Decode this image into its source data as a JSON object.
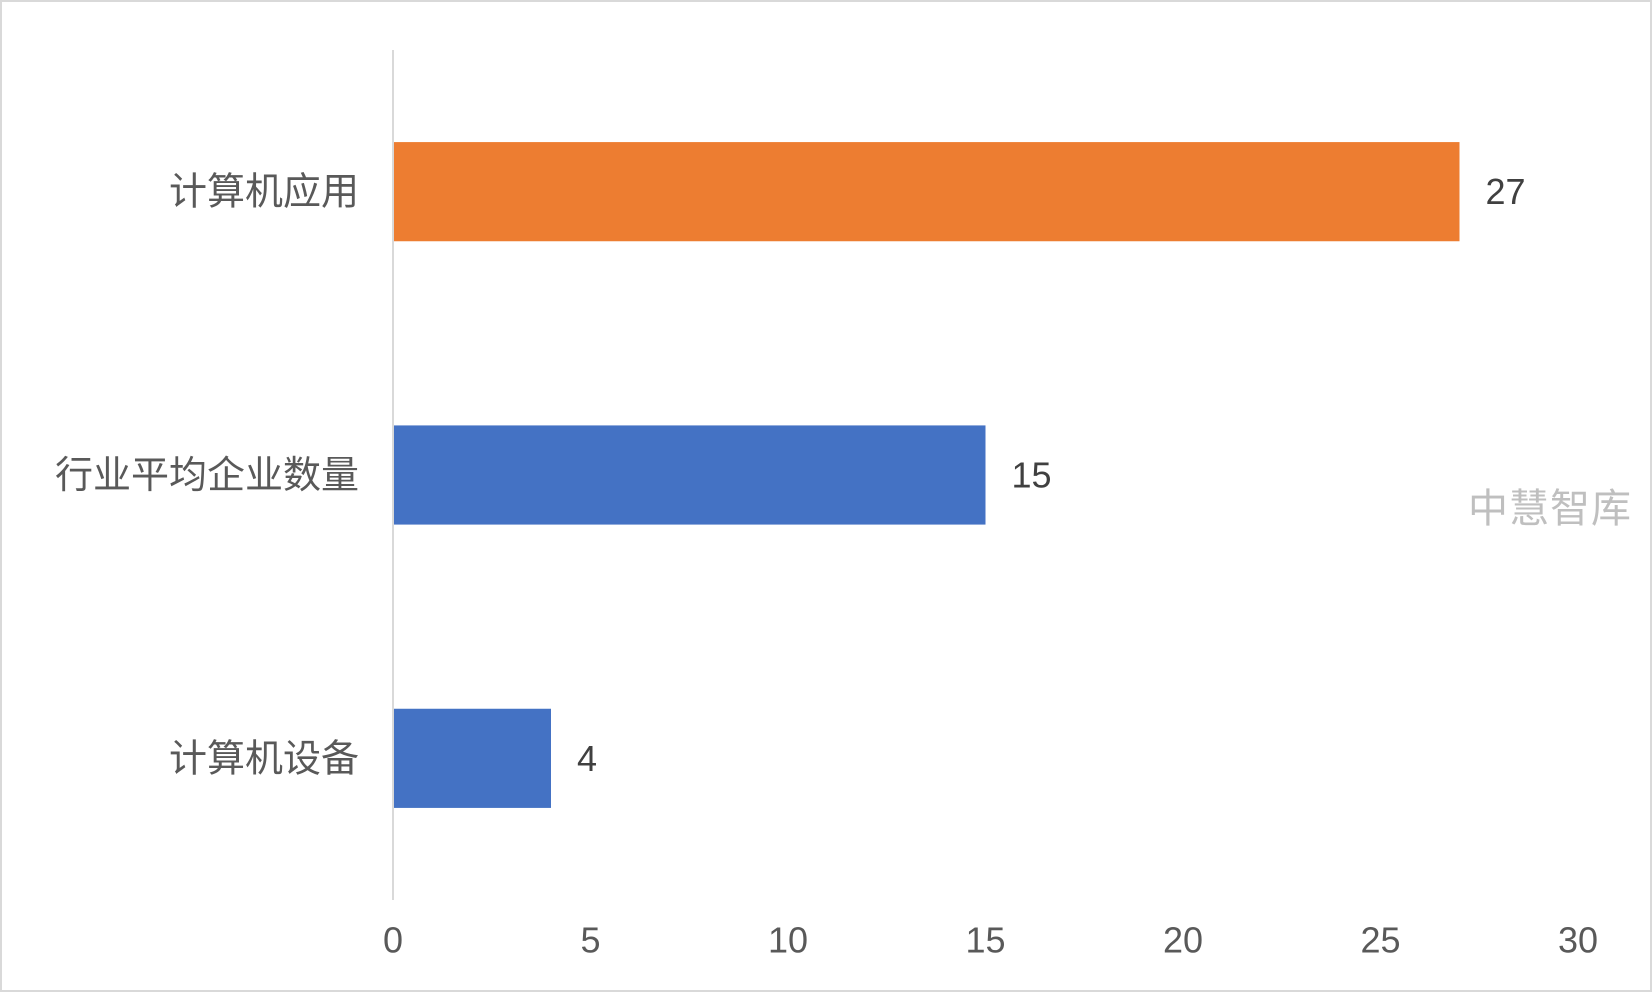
{
  "chart_data": {
    "type": "bar",
    "orientation": "horizontal",
    "categories": [
      "计算机应用",
      "行业平均企业数量",
      "计算机设备"
    ],
    "values": [
      27,
      15,
      4
    ],
    "colors": [
      "#ED7D31",
      "#4472C4",
      "#4472C4"
    ],
    "xlim": [
      0,
      30
    ],
    "xticks": [
      0,
      5,
      10,
      15,
      20,
      25,
      30
    ],
    "title": "",
    "xlabel": "",
    "ylabel": "",
    "grid": false,
    "data_labels": true
  },
  "watermark": "中慧智库"
}
